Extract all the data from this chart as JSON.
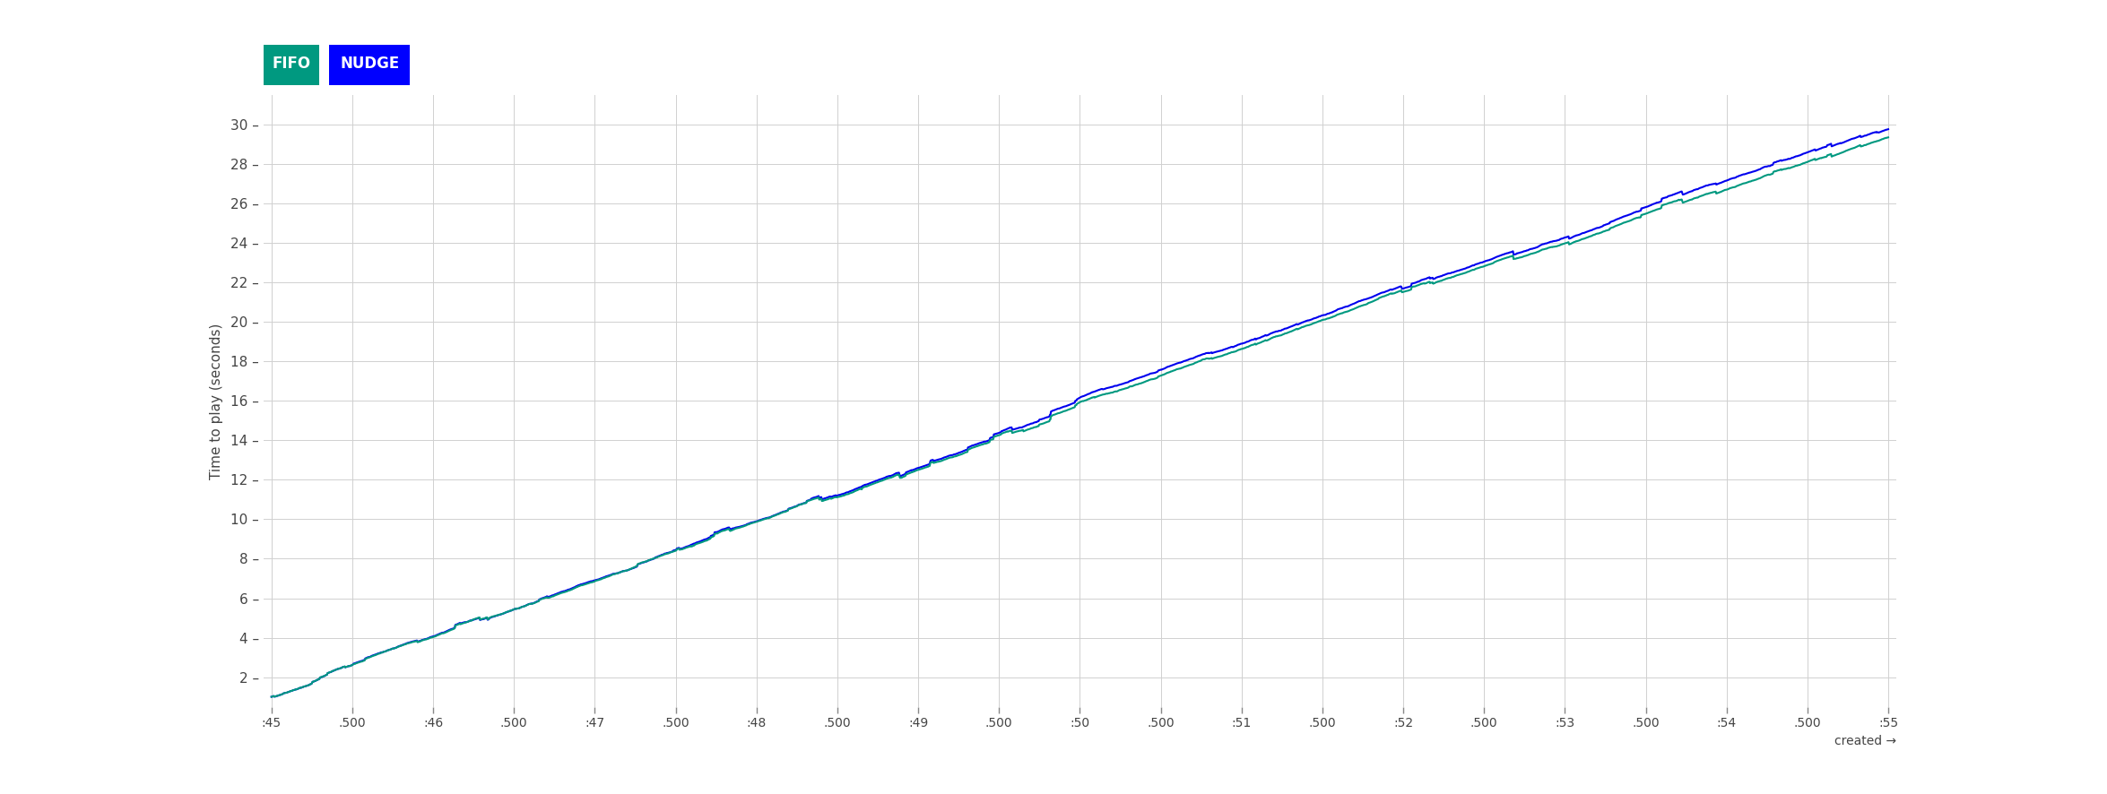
{
  "ylabel": "Time to play (seconds)",
  "xlabel": "created →",
  "fifo_color": "#009980",
  "nudge_color": "#0000EE",
  "background_color": "#ffffff",
  "grid_color": "#d0d0d0",
  "ylim": [
    0.5,
    31.5
  ],
  "yticks": [
    2,
    4,
    6,
    8,
    10,
    12,
    14,
    16,
    18,
    20,
    22,
    24,
    26,
    28,
    30
  ],
  "xtick_labels": [
    ":45",
    ".500",
    ":46",
    ".500",
    ":47",
    ".500",
    ":48",
    ".500",
    ":49",
    ".500",
    ":50",
    ".500",
    ":51",
    ".500",
    ":52",
    ".500",
    ":53",
    ".500",
    ":54",
    ".500",
    ":55"
  ],
  "legend_fifo_color": "#009980",
  "legend_nudge_color": "#0000FF",
  "legend_fifo_label": "FIFO",
  "legend_nudge_label": "NUDGE"
}
